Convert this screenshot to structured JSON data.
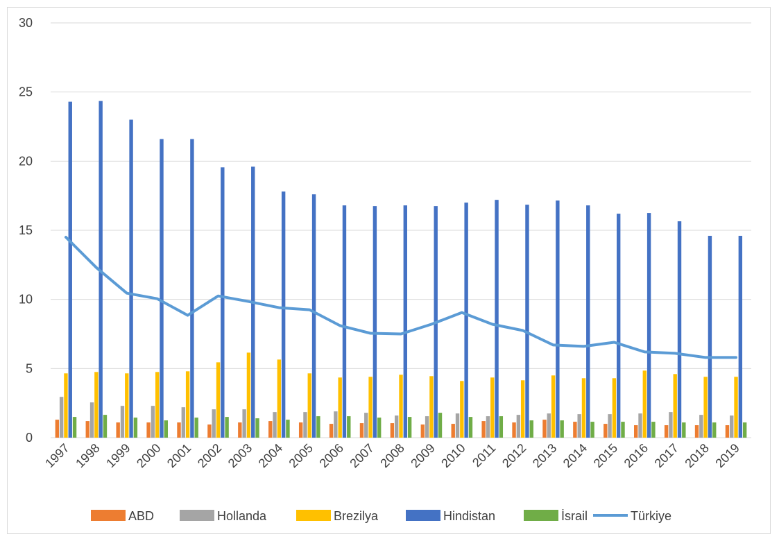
{
  "chart_data": {
    "type": "bar",
    "title": "",
    "xlabel": "",
    "ylabel": "",
    "ylim": [
      0,
      30
    ],
    "yticks": [
      0,
      5,
      10,
      15,
      20,
      25,
      30
    ],
    "grid": true,
    "legend_position": "bottom",
    "categories": [
      "1997",
      "1998",
      "1999",
      "2000",
      "2001",
      "2002",
      "2003",
      "2004",
      "2005",
      "2006",
      "2007",
      "2008",
      "2009",
      "2010",
      "2011",
      "2012",
      "2013",
      "2014",
      "2015",
      "2016",
      "2017",
      "2018",
      "2019"
    ],
    "series": [
      {
        "name": "ABD",
        "kind": "bar",
        "color": "#ed7d31",
        "values": [
          1.3,
          1.2,
          1.1,
          1.1,
          1.1,
          0.95,
          1.1,
          1.2,
          1.1,
          1.0,
          1.05,
          1.05,
          0.95,
          1.0,
          1.2,
          1.1,
          1.3,
          1.15,
          1.0,
          0.9,
          0.9,
          0.9,
          0.9
        ]
      },
      {
        "name": "Hollanda",
        "kind": "bar",
        "color": "#a5a5a5",
        "values": [
          2.95,
          2.55,
          2.3,
          2.3,
          2.2,
          2.05,
          2.05,
          1.85,
          1.85,
          1.9,
          1.8,
          1.6,
          1.55,
          1.75,
          1.55,
          1.65,
          1.75,
          1.7,
          1.7,
          1.75,
          1.85,
          1.65,
          1.6
        ]
      },
      {
        "name": "Brezilya",
        "kind": "bar",
        "color": "#ffc000",
        "values": [
          4.65,
          4.75,
          4.65,
          4.75,
          4.8,
          5.45,
          6.15,
          5.65,
          4.65,
          4.35,
          4.4,
          4.55,
          4.45,
          4.1,
          4.35,
          4.15,
          4.5,
          4.3,
          4.3,
          4.85,
          4.6,
          4.4,
          4.4
        ]
      },
      {
        "name": "Hindistan",
        "kind": "bar",
        "color": "#4472c4",
        "values": [
          24.3,
          24.35,
          23.0,
          21.6,
          21.6,
          19.55,
          19.6,
          17.8,
          17.6,
          16.8,
          16.75,
          16.8,
          16.75,
          17.0,
          17.2,
          16.85,
          17.15,
          16.8,
          16.2,
          16.25,
          15.65,
          14.6,
          14.6
        ]
      },
      {
        "name": "İsrail",
        "kind": "bar",
        "color": "#70ad47",
        "values": [
          1.5,
          1.65,
          1.45,
          1.25,
          1.45,
          1.5,
          1.4,
          1.3,
          1.55,
          1.55,
          1.45,
          1.5,
          1.8,
          1.5,
          1.55,
          1.25,
          1.25,
          1.15,
          1.15,
          1.15,
          1.1,
          1.1,
          1.1
        ]
      },
      {
        "name": "Türkiye",
        "kind": "line",
        "color": "#5b9bd5",
        "values": [
          14.5,
          12.3,
          10.45,
          10.05,
          8.85,
          10.25,
          9.85,
          9.4,
          9.25,
          8.1,
          7.55,
          7.5,
          8.2,
          9.05,
          8.2,
          7.75,
          6.7,
          6.6,
          6.9,
          6.2,
          6.1,
          5.8,
          5.8
        ]
      }
    ]
  }
}
